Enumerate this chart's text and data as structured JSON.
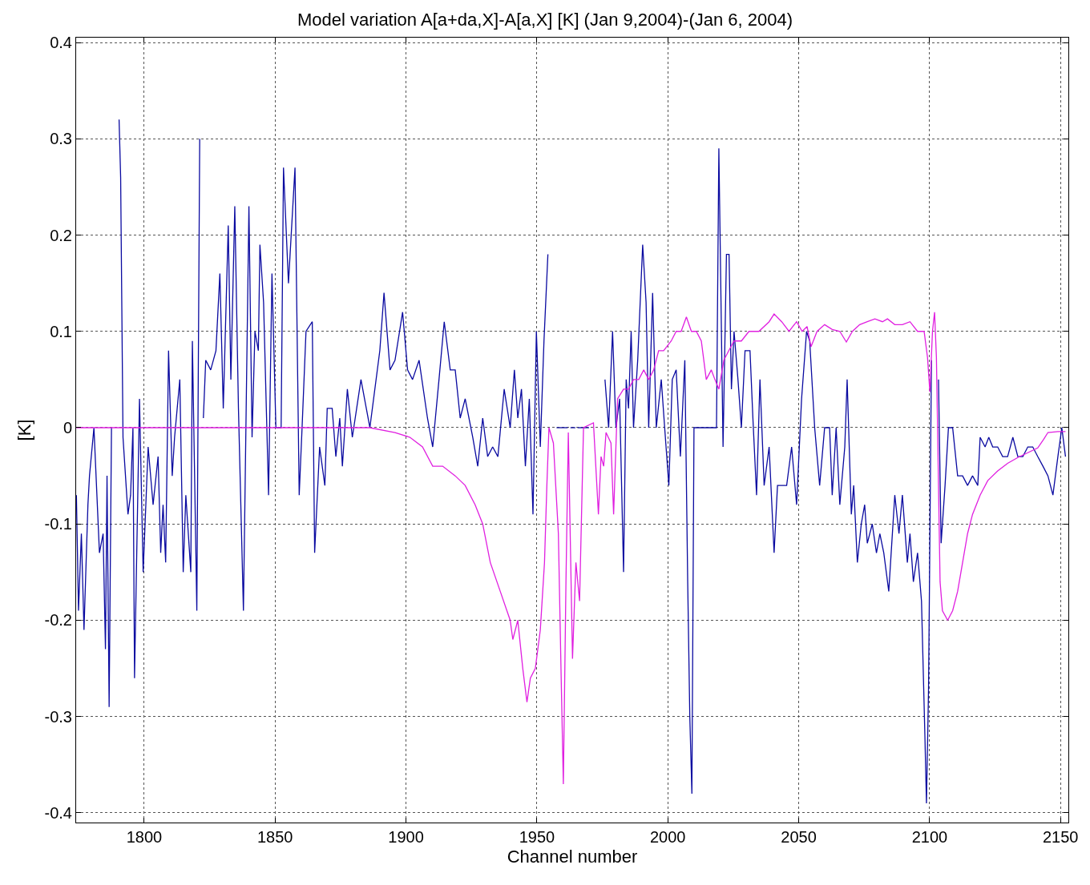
{
  "chart_data": {
    "type": "line",
    "title": "Model variation A[a+da,X]-A[a,X] [K] (Jan 9,2004)-(Jan 6, 2004)",
    "xlabel": "Channel number",
    "ylabel": "[K]",
    "xlim": [
      1774,
      2153
    ],
    "ylim": [
      -0.41,
      0.405
    ],
    "xticks": [
      1800,
      1850,
      1900,
      1950,
      2000,
      2050,
      2100,
      2150
    ],
    "yticks": [
      -0.4,
      -0.3,
      -0.2,
      -0.1,
      0,
      0.1,
      0.2,
      0.3,
      0.4
    ],
    "grid": true,
    "line_style": "solid",
    "marker": "none",
    "series": [
      {
        "color": "#0a0aa0",
        "x": [
          1774.1,
          1774.9,
          1776.0,
          1777.0,
          1778.5,
          1779.1,
          1780.8,
          1782.9,
          1784.3,
          1785.2,
          1785.8,
          1786.6,
          1787.5,
          1788.7,
          1790.4,
          1791.0,
          1791.9,
          1793.8,
          1794.8,
          1795.7,
          1796.3,
          1798.2,
          1799.6,
          1801.5,
          1803.4,
          1805.3,
          1806.3,
          1807.2,
          1808.2,
          1809.3,
          1810.7,
          1811.6,
          1813.6,
          1814.9,
          1815.9,
          1817.8,
          1818.4,
          1820.1,
          1821.2,
          1821.8,
          1822.6,
          1823.5,
          1825.4,
          1827.4,
          1828.9,
          1830.2,
          1832.1,
          1833.1,
          1834.6,
          1836.0,
          1837.9,
          1840.0,
          1841.2,
          1842.3,
          1843.6,
          1844.2,
          1845.6,
          1847.5,
          1848.8,
          1850.3,
          1852.3,
          1853.2,
          1855.1,
          1857.6,
          1859.2,
          1860.3,
          1861.8,
          1864.2,
          1865.1,
          1867.0,
          1869.0,
          1869.9,
          1871.8,
          1873.2,
          1874.7,
          1875.7,
          1877.6,
          1879.5,
          1882.8,
          1886.2,
          1890.0,
          1891.6,
          1893.9,
          1895.8,
          1898.7,
          1900.6,
          1902.5,
          1905.0,
          1908.2,
          1910.2,
          1912.6,
          1914.6,
          1916.9,
          1918.8,
          1920.7,
          1922.6,
          1925.5,
          1927.4,
          1929.3,
          1931.2,
          1933.1,
          1935.1,
          1937.5,
          1939.8,
          1941.4,
          1942.7,
          1944.1,
          1945.6,
          1947.1,
          1948.5,
          1949.8,
          1951.3,
          1952.7,
          1954.2,
          1954.8,
          1957.5,
          1961.8,
          1962.2,
          1962.8,
          1964.7,
          1965.1,
          1965.5,
          1969.9,
          1970.3,
          1976.0,
          1977.4,
          1978.9,
          1980.2,
          1981.6,
          1983.1,
          1984.1,
          1985.0,
          1986.0,
          1986.9,
          1988.5,
          1990.4,
          1991.7,
          1992.7,
          1994.2,
          1995.6,
          1997.5,
          1998.8,
          2000.4,
          2001.7,
          2003.2,
          2004.8,
          2006.5,
          2007.6,
          2008.4,
          2009.2,
          2010.0,
          2018.6,
          2019.5,
          2021.1,
          2022.4,
          2023.4,
          2024.3,
          2025.3,
          2026.8,
          2028.1,
          2029.5,
          2031.4,
          2032.5,
          2033.9,
          2035.2,
          2036.8,
          2038.7,
          2040.6,
          2041.9,
          2043.5,
          2045.4,
          2047.3,
          2049.2,
          2051.1,
          2053.0,
          2054.2,
          2056.1,
          2058.0,
          2059.9,
          2061.8,
          2062.8,
          2064.3,
          2065.7,
          2067.6,
          2068.5,
          2070.1,
          2071.0,
          2072.4,
          2073.9,
          2075.2,
          2076.2,
          2078.1,
          2079.7,
          2081.0,
          2082.5,
          2084.4,
          2086.7,
          2088.3,
          2089.6,
          2091.5,
          2092.5,
          2093.8,
          2095.4,
          2096.9,
          2098.2,
          2098.8,
          2099.6,
          2100.7,
          2101.5,
          2102.6,
          2103.4,
          2104.4,
          2105.9,
          2107.2,
          2108.8,
          2110.7,
          2112.6,
          2114.5,
          2116.4,
          2118.4,
          2119.3,
          2121.2,
          2122.6,
          2124.1,
          2126.0,
          2127.9,
          2129.8,
          2131.8,
          2133.7,
          2135.6,
          2137.5,
          2139.4,
          2141.3,
          2143.3,
          2145.2,
          2147.1,
          2149.0,
          2150.5,
          2151.9
        ],
        "values": [
          -0.07,
          -0.19,
          -0.11,
          -0.21,
          -0.08,
          -0.05,
          0,
          -0.13,
          -0.11,
          -0.23,
          -0.05,
          -0.29,
          0,
          null,
          0.32,
          0.26,
          -0.01,
          -0.09,
          -0.07,
          0,
          -0.26,
          0.03,
          -0.15,
          -0.02,
          -0.08,
          -0.03,
          -0.13,
          -0.08,
          -0.14,
          0.08,
          -0.05,
          -0.01,
          0.05,
          -0.15,
          -0.07,
          -0.15,
          0.09,
          -0.19,
          0.3,
          null,
          0.01,
          0.07,
          0.06,
          0.08,
          0.16,
          0.02,
          0.21,
          0.05,
          0.23,
          0.02,
          -0.19,
          0.23,
          -0.01,
          0.1,
          0.08,
          0.19,
          0.13,
          -0.07,
          0.16,
          0,
          0,
          0.27,
          0.15,
          0.27,
          -0.07,
          0,
          0.1,
          0.11,
          -0.13,
          -0.02,
          -0.06,
          0.02,
          0.02,
          -0.03,
          0.01,
          -0.04,
          0.04,
          -0.01,
          0.05,
          0,
          0.08,
          0.14,
          0.06,
          0.07,
          0.12,
          0.06,
          0.05,
          0.07,
          0.01,
          -0.02,
          0.05,
          0.11,
          0.06,
          0.06,
          0.01,
          0.03,
          -0.01,
          -0.04,
          0.01,
          -0.03,
          -0.02,
          -0.03,
          0.04,
          0,
          0.06,
          0.01,
          0.04,
          -0.04,
          0.03,
          -0.09,
          0.1,
          -0.02,
          0.09,
          0.18,
          null,
          0,
          0,
          null,
          0,
          0,
          null,
          0,
          0,
          null,
          0.05,
          0,
          0.1,
          0,
          0.03,
          -0.15,
          0.05,
          0.02,
          0.1,
          0,
          0.07,
          0.19,
          0.13,
          0,
          0.14,
          0,
          0.05,
          0,
          -0.06,
          0.05,
          0.06,
          -0.03,
          0.07,
          -0.16,
          -0.3,
          -0.38,
          0,
          0,
          0.29,
          -0.02,
          0.18,
          0.18,
          0.04,
          0.1,
          0.05,
          0,
          0.08,
          0.08,
          0.01,
          -0.07,
          0.05,
          -0.06,
          -0.02,
          -0.13,
          -0.06,
          -0.06,
          -0.06,
          -0.02,
          -0.08,
          0.03,
          0.1,
          0.09,
          0,
          -0.06,
          0,
          0,
          -0.07,
          0,
          -0.08,
          -0.02,
          0.05,
          -0.09,
          -0.06,
          -0.14,
          -0.1,
          -0.08,
          -0.12,
          -0.1,
          -0.13,
          -0.11,
          -0.13,
          -0.17,
          -0.07,
          -0.11,
          -0.07,
          -0.14,
          -0.11,
          -0.16,
          -0.13,
          -0.18,
          -0.32,
          -0.39,
          -0.27,
          0.07,
          null,
          null,
          0.05,
          -0.12,
          -0.06,
          0,
          0,
          -0.05,
          -0.05,
          -0.06,
          -0.05,
          -0.06,
          -0.01,
          -0.02,
          -0.01,
          -0.02,
          -0.02,
          -0.03,
          -0.03,
          -0.01,
          -0.03,
          -0.03,
          -0.02,
          -0.02,
          -0.03,
          -0.04,
          -0.05,
          -0.07,
          -0.03,
          0,
          -0.03
        ]
      },
      {
        "color": "#e020e0",
        "x": [
          1774.1,
          1886.2,
          1895.8,
          1901.5,
          1906.3,
          1910.2,
          1914.0,
          1918.8,
          1922.6,
          1926.4,
          1929.3,
          1932.2,
          1936.0,
          1939.8,
          1940.8,
          1942.7,
          1944.6,
          1946.2,
          1947.5,
          1949.4,
          1951.3,
          1952.9,
          1953.8,
          1954.6,
          1956.3,
          1958.2,
          1959.2,
          1960.1,
          1961.1,
          1962.0,
          1963.6,
          1964.9,
          1966.3,
          1967.8,
          1971.6,
          1973.5,
          1974.5,
          1975.5,
          1976.4,
          1978.3,
          1979.3,
          1980.8,
          1983.1,
          1985.0,
          1986.9,
          1988.9,
          1990.8,
          1992.7,
          1994.6,
          1996.5,
          1998.4,
          2001.3,
          2003.2,
          2005.1,
          2007.1,
          2009.0,
          2010.9,
          2012.8,
          2014.7,
          2016.6,
          2018.0,
          2019.5,
          2021.4,
          2023.3,
          2025.3,
          2028.1,
          2031.0,
          2034.8,
          2038.7,
          2040.6,
          2043.5,
          2046.3,
          2049.2,
          2051.3,
          2053.2,
          2054.7,
          2057.0,
          2059.9,
          2062.8,
          2065.7,
          2068.2,
          2070.5,
          2073.3,
          2076.2,
          2079.1,
          2082.0,
          2083.9,
          2086.7,
          2089.6,
          2092.5,
          2095.4,
          2097.9,
          2099.2,
          2100.1,
          2101.1,
          2101.9,
          2102.6,
          2103.4,
          2104.0,
          2104.9,
          2106.9,
          2108.8,
          2110.7,
          2112.6,
          2114.5,
          2116.4,
          2119.3,
          2122.2,
          2126.0,
          2129.8,
          2133.7,
          2137.5,
          2141.3,
          2143.6,
          2145.2,
          2149.0,
          2151.9
        ],
        "values": [
          0,
          0,
          -0.005,
          -0.01,
          -0.02,
          -0.04,
          -0.04,
          -0.05,
          -0.06,
          -0.08,
          -0.1,
          -0.14,
          -0.17,
          -0.2,
          -0.22,
          -0.2,
          -0.25,
          -0.285,
          -0.26,
          -0.25,
          -0.21,
          -0.14,
          -0.06,
          0,
          -0.016,
          -0.11,
          -0.25,
          -0.37,
          -0.16,
          -0.005,
          -0.24,
          -0.14,
          -0.18,
          0,
          0.005,
          -0.09,
          -0.03,
          -0.04,
          -0.005,
          -0.016,
          -0.09,
          0.03,
          0.04,
          0.04,
          0.05,
          0.05,
          0.06,
          0.05,
          0.06,
          0.08,
          0.08,
          0.09,
          0.1,
          0.1,
          0.115,
          0.1,
          0.1,
          0.09,
          0.05,
          0.06,
          0.05,
          0.04,
          0.07,
          0.08,
          0.09,
          0.09,
          0.1,
          0.1,
          0.11,
          0.118,
          0.11,
          0.1,
          0.11,
          0.1,
          0.105,
          0.084,
          0.1,
          0.107,
          0.102,
          0.1,
          0.089,
          0.1,
          0.107,
          0.11,
          0.113,
          0.11,
          0.113,
          0.107,
          0.107,
          0.11,
          0.1,
          0.1,
          0.073,
          0.037,
          0.1,
          0.12,
          0.073,
          -0.06,
          -0.16,
          -0.19,
          -0.2,
          -0.19,
          -0.17,
          -0.14,
          -0.11,
          -0.09,
          -0.07,
          -0.055,
          -0.045,
          -0.037,
          -0.031,
          -0.026,
          -0.021,
          -0.012,
          -0.005,
          -0.004,
          -0.004
        ]
      }
    ]
  }
}
